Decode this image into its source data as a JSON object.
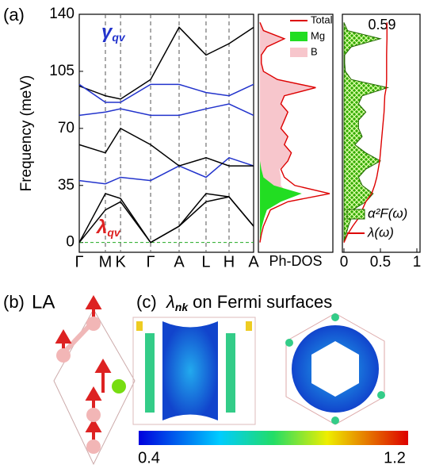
{
  "chart_data": [
    {
      "type": "line",
      "label": "(a)",
      "ylabel": "Frequency (meV)",
      "x": [
        0,
        1,
        1.58,
        2.73,
        3.82,
        4.85,
        5.73,
        6.67
      ],
      "xlim": [
        0,
        6.67
      ],
      "xticks": [
        {
          "value": 0,
          "label": "Γ"
        },
        {
          "value": 1,
          "label": "M"
        },
        {
          "value": 1.58,
          "label": "K"
        },
        {
          "value": 2.73,
          "label": "Γ"
        },
        {
          "value": 3.82,
          "label": "A"
        },
        {
          "value": 4.85,
          "label": "L"
        },
        {
          "value": 5.73,
          "label": "H"
        },
        {
          "value": 6.67,
          "label": "A"
        }
      ],
      "ylim": [
        -6,
        140
      ],
      "yticks": [
        0,
        35,
        70,
        105,
        140
      ],
      "zero_line": true,
      "annotations": [
        {
          "text": "γ",
          "subscript": "qv",
          "color": "#2233cc"
        },
        {
          "text": "λ",
          "subscript": "qv",
          "color": "#dd2222"
        }
      ],
      "series": [
        {
          "color": "#000000",
          "values": [
            0,
            30,
            27,
            0,
            10,
            30,
            28,
            10
          ]
        },
        {
          "color": "#000000",
          "values": [
            0,
            20,
            25,
            0,
            10,
            25,
            28,
            10
          ]
        },
        {
          "color": "#2233cc",
          "values": [
            38,
            36,
            40,
            38,
            47,
            40,
            52,
            47
          ]
        },
        {
          "color": "#000000",
          "values": [
            60,
            55,
            70,
            60,
            47,
            52,
            47,
            47
          ]
        },
        {
          "color": "#2233cc",
          "values": [
            78,
            80,
            82,
            78,
            78,
            82,
            85,
            78
          ]
        },
        {
          "color": "#000000",
          "values": [
            96,
            90,
            88,
            100,
            132,
            115,
            122,
            132
          ]
        },
        {
          "color": "#2233cc",
          "values": [
            97,
            86,
            86,
            97,
            97,
            92,
            90,
            97
          ]
        }
      ]
    },
    {
      "type": "area",
      "xlabel": "Ph-DOS",
      "xlim": [
        0,
        1
      ],
      "ylim": [
        -6,
        140
      ],
      "legend": "upper right",
      "frequency": [
        0,
        5,
        10,
        15,
        20,
        25,
        30,
        35,
        40,
        45,
        50,
        55,
        60,
        65,
        70,
        75,
        80,
        85,
        90,
        95,
        100,
        105,
        110,
        115,
        120,
        125,
        130,
        135
      ],
      "series": [
        {
          "name": "B",
          "style": "area",
          "color": "#f7c6cc",
          "values": [
            0,
            0.01,
            0.02,
            0.04,
            0.05,
            0.1,
            0.4,
            0.3,
            0.3,
            0.28,
            0.4,
            0.45,
            0.35,
            0.4,
            0.3,
            0.35,
            0.4,
            0.3,
            0.35,
            0.8,
            0.25,
            0.05,
            0.02,
            0.02,
            0.1,
            0.35,
            0.05,
            0
          ]
        },
        {
          "name": "Mg",
          "style": "area",
          "color": "#22dd22",
          "values": [
            0,
            0.01,
            0.03,
            0.06,
            0.1,
            0.3,
            0.6,
            0.2,
            0.05,
            0.02,
            0,
            0,
            0,
            0,
            0,
            0,
            0,
            0,
            0,
            0,
            0,
            0,
            0,
            0,
            0,
            0,
            0,
            0
          ]
        },
        {
          "name": "Total",
          "style": "line",
          "color": "#dd0000",
          "values": [
            0,
            0.02,
            0.05,
            0.1,
            0.15,
            0.4,
            1.0,
            0.5,
            0.35,
            0.3,
            0.4,
            0.45,
            0.35,
            0.4,
            0.3,
            0.35,
            0.4,
            0.3,
            0.35,
            0.8,
            0.25,
            0.05,
            0.02,
            0.02,
            0.1,
            0.35,
            0.05,
            0
          ]
        }
      ]
    },
    {
      "type": "area",
      "xlim": [
        0,
        1
      ],
      "xticks": [
        0,
        0.5,
        1
      ],
      "ylim": [
        -6,
        140
      ],
      "legend": "lower right",
      "annotation": "0.59",
      "frequency": [
        0,
        5,
        10,
        15,
        20,
        25,
        30,
        35,
        40,
        45,
        50,
        55,
        60,
        65,
        70,
        75,
        80,
        85,
        90,
        95,
        100,
        105,
        110,
        115,
        120,
        125,
        130,
        135
      ],
      "series": [
        {
          "name": "α²F(ω)",
          "style": "area",
          "color": "#33aa00",
          "values": [
            0,
            0.03,
            0.06,
            0.1,
            0.12,
            0.3,
            0.4,
            0.25,
            0.2,
            0.3,
            0.5,
            0.3,
            0.15,
            0.25,
            0.2,
            0.2,
            0.3,
            0.2,
            0.25,
            0.6,
            0.1,
            0.02,
            0.01,
            0.01,
            0.1,
            0.5,
            0.05,
            0
          ]
        },
        {
          "name": "λ(ω)",
          "style": "line",
          "color": "#dd0000",
          "values": [
            0,
            0.05,
            0.12,
            0.2,
            0.25,
            0.3,
            0.38,
            0.42,
            0.45,
            0.47,
            0.49,
            0.5,
            0.51,
            0.52,
            0.53,
            0.54,
            0.55,
            0.555,
            0.56,
            0.58,
            0.585,
            0.585,
            0.585,
            0.585,
            0.587,
            0.59,
            0.59,
            0.59
          ]
        }
      ]
    }
  ],
  "panel_b": {
    "label": "(b)",
    "mode": "LA"
  },
  "panel_c": {
    "label": "(c)",
    "symbol": "λ",
    "subscript": "nk",
    "text": "on Fermi surfaces",
    "colorbar_lim": [
      0.4,
      1.2
    ]
  }
}
